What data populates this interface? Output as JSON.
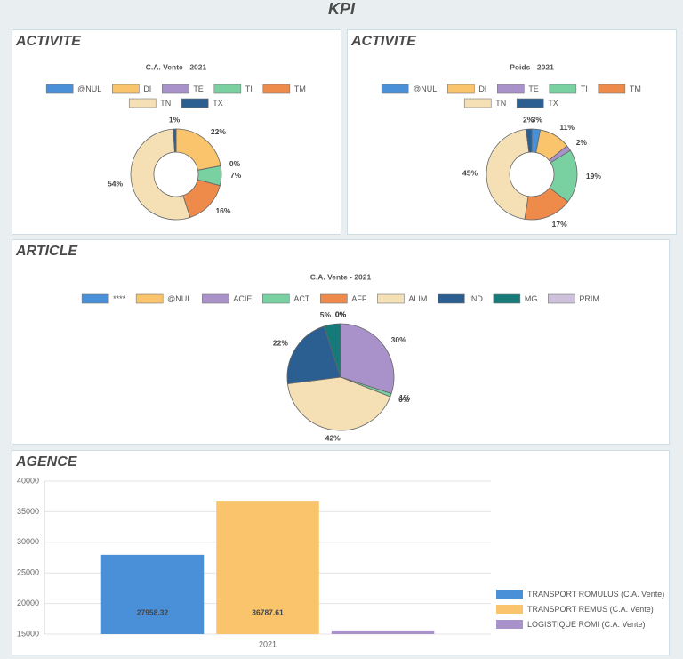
{
  "title": "KPI",
  "chart_data": [
    {
      "type": "donut",
      "header": "ACTIVITE",
      "subtitle": "C.A. Vente - 2021",
      "legend": "top",
      "categories": [
        "@NUL",
        "DI",
        "TE",
        "TI",
        "TM",
        "TN",
        "TX"
      ],
      "values": [
        0,
        22,
        0,
        7,
        16,
        54,
        1
      ],
      "value_labels": [
        null,
        "22%",
        "0%",
        "7%",
        "16%",
        "54%",
        "1%"
      ],
      "colors": [
        "#4a90d9",
        "#f9c46b",
        "#a992c9",
        "#79d0a0",
        "#ee8b4b",
        "#f5dfb5",
        "#2b5f91"
      ]
    },
    {
      "type": "donut",
      "header": "ACTIVITE",
      "subtitle": "Poids - 2021",
      "legend": "top",
      "categories": [
        "@NUL",
        "DI",
        "TE",
        "TI",
        "TM",
        "TN",
        "TX"
      ],
      "values": [
        3,
        11,
        2,
        19,
        17,
        45,
        2
      ],
      "value_labels": [
        "3%",
        "11%",
        "2%",
        "19%",
        "17%",
        "45%",
        "2%"
      ],
      "colors": [
        "#4a90d9",
        "#f9c46b",
        "#a992c9",
        "#79d0a0",
        "#ee8b4b",
        "#f5dfb5",
        "#2b5f91"
      ]
    },
    {
      "type": "pie",
      "header": "ARTICLE",
      "subtitle": "C.A. Vente - 2021",
      "legend": "top",
      "categories": [
        "****",
        "@NUL",
        "ACIE",
        "ACT",
        "AFF",
        "ALIM",
        "IND",
        "MG",
        "PRIM"
      ],
      "values": [
        0,
        0,
        30,
        1,
        0,
        42,
        22,
        5,
        0
      ],
      "value_labels": [
        "0%",
        "0%",
        "30%",
        "1%",
        "0%",
        "42%",
        "22%",
        "5%",
        "0%"
      ],
      "colors": [
        "#4a90d9",
        "#f9c46b",
        "#a992c9",
        "#79d0a0",
        "#ee8b4b",
        "#f5dfb5",
        "#2b5f91",
        "#167a7a",
        "#cfc0dc"
      ]
    },
    {
      "type": "bar",
      "header": "AGENCE",
      "legend": "right",
      "grid": true,
      "categories": [
        "2021"
      ],
      "ylim": [
        15000,
        40000
      ],
      "yticks": [
        15000,
        20000,
        25000,
        30000,
        35000,
        40000
      ],
      "series": [
        {
          "name": "TRANSPORT ROMULUS (C.A. Vente)",
          "color": "#4a90d9",
          "values": [
            27958.32
          ],
          "labels": true
        },
        {
          "name": "TRANSPORT REMUS (C.A. Vente)",
          "color": "#f9c46b",
          "values": [
            36787.61
          ],
          "labels": true
        },
        {
          "name": "LOGISTIQUE ROMI (C.A. Vente)",
          "color": "#a992c9",
          "values": [
            15600
          ],
          "labels": false
        }
      ]
    }
  ]
}
